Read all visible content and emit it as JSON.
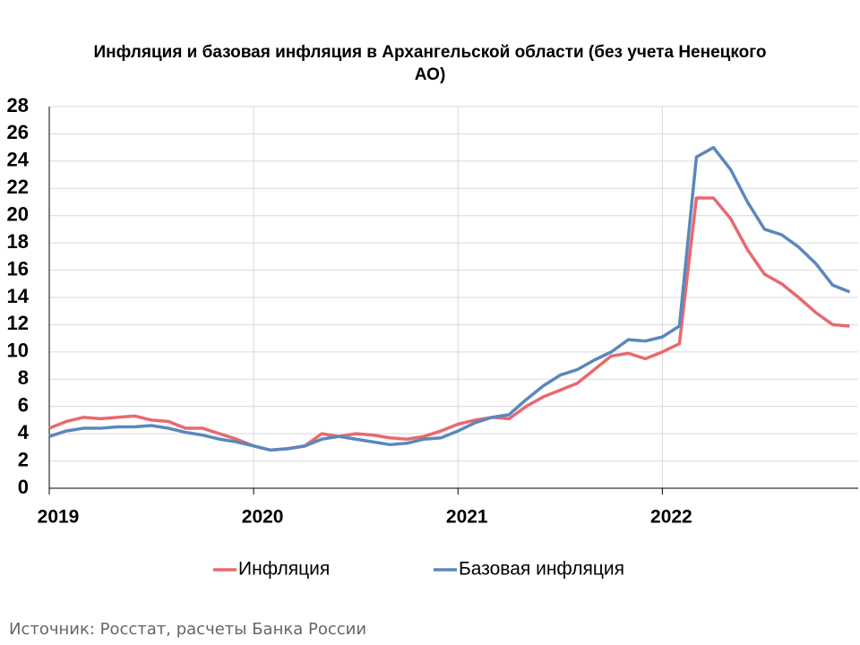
{
  "chart_data": {
    "type": "line",
    "title": "Инфляция и базовая инфляция в Архангельской области (без учета Ненецкого АО)",
    "source": "Источник: Росстат, расчеты Банка России",
    "categories": [
      "2019",
      null,
      null,
      null,
      null,
      null,
      null,
      null,
      null,
      null,
      null,
      null,
      "2020",
      null,
      null,
      null,
      null,
      null,
      null,
      null,
      null,
      null,
      null,
      null,
      "2021",
      null,
      null,
      null,
      null,
      null,
      null,
      null,
      null,
      null,
      null,
      null,
      "2022",
      null,
      null,
      null,
      null,
      null,
      null,
      null,
      null,
      null,
      null,
      null
    ],
    "series": [
      {
        "name": "Инфляция",
        "color": "#e8696e",
        "values": [
          4.4,
          4.9,
          5.2,
          5.1,
          5.2,
          5.3,
          5.0,
          4.9,
          4.4,
          4.4,
          4.0,
          3.6,
          3.1,
          2.8,
          2.9,
          3.1,
          4.0,
          3.8,
          4.0,
          3.9,
          3.7,
          3.6,
          3.8,
          4.2,
          4.7,
          5.0,
          5.2,
          5.1,
          6.0,
          6.7,
          7.2,
          7.7,
          8.7,
          9.7,
          9.9,
          9.5,
          10.0,
          10.6,
          21.3,
          21.3,
          19.8,
          17.5,
          15.7,
          15.0,
          14.0,
          12.9,
          12.0,
          11.9
        ]
      },
      {
        "name": "Базовая инфляция",
        "color": "#5b87bd",
        "values": [
          3.8,
          4.2,
          4.4,
          4.4,
          4.5,
          4.5,
          4.6,
          4.4,
          4.1,
          3.9,
          3.6,
          3.4,
          3.1,
          2.8,
          2.9,
          3.1,
          3.6,
          3.8,
          3.6,
          3.4,
          3.2,
          3.3,
          3.6,
          3.7,
          4.2,
          4.8,
          5.2,
          5.4,
          6.5,
          7.5,
          8.3,
          8.7,
          9.4,
          10.0,
          10.9,
          10.8,
          11.1,
          11.9,
          24.3,
          25.0,
          23.4,
          21.0,
          19.0,
          18.6,
          17.7,
          16.5,
          14.9,
          14.4
        ]
      }
    ],
    "ylim": [
      0,
      28
    ],
    "yticks": [
      0,
      2,
      4,
      6,
      8,
      10,
      12,
      14,
      16,
      18,
      20,
      22,
      24,
      26,
      28
    ],
    "grid": true,
    "legend": "bottom"
  }
}
